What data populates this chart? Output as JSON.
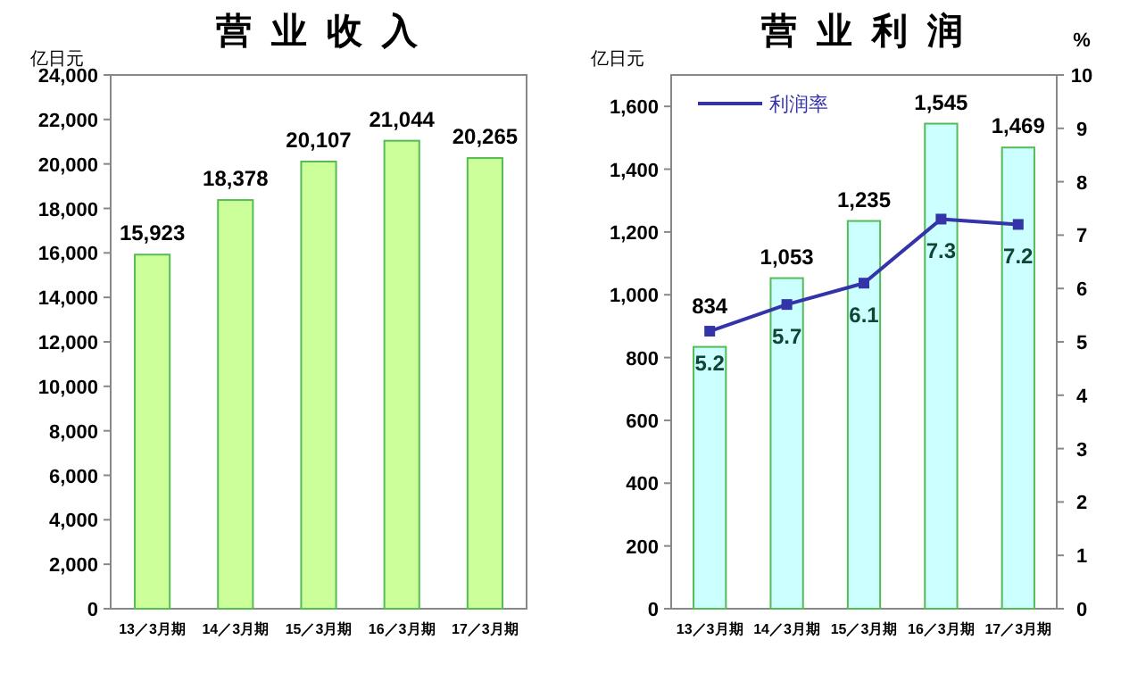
{
  "chart_data": [
    {
      "type": "bar",
      "title": "营 业 收 入",
      "ylabel": "亿日元",
      "categories": [
        "13／3月期",
        "14／3月期",
        "15／3月期",
        "16／3月期",
        "17／3月期"
      ],
      "series": [
        {
          "color": "#ccff99",
          "values": [
            15923,
            18378,
            20107,
            21044,
            20265
          ],
          "value_labels": [
            "15,923",
            "18,378",
            "20,107",
            "21,044",
            "20,265"
          ]
        }
      ],
      "ylim": [
        0,
        24000
      ],
      "yticks": [
        {
          "value": 0,
          "label": "0"
        },
        {
          "value": 2000,
          "label": "2,000"
        },
        {
          "value": 4000,
          "label": "4,000"
        },
        {
          "value": 6000,
          "label": "6,000"
        },
        {
          "value": 8000,
          "label": "8,000"
        },
        {
          "value": 10000,
          "label": "10,000"
        },
        {
          "value": 12000,
          "label": "12,000"
        },
        {
          "value": 14000,
          "label": "14,000"
        },
        {
          "value": 16000,
          "label": "16,000"
        },
        {
          "value": 18000,
          "label": "18,000"
        },
        {
          "value": 20000,
          "label": "20,000"
        },
        {
          "value": 22000,
          "label": "22,000"
        },
        {
          "value": 24000,
          "label": "24,000"
        }
      ],
      "grid": false,
      "legend": false
    },
    {
      "type": "bar",
      "title": "营 业 利 润",
      "ylabel": "亿日元",
      "y2label": "%",
      "categories": [
        "13／3月期",
        "14／3月期",
        "15／3月期",
        "16／3月期",
        "17／3月期"
      ],
      "series": [
        {
          "color": "#ccffff",
          "values": [
            834,
            1053,
            1235,
            1545,
            1469
          ],
          "value_labels": [
            "834",
            "1,053",
            "1,235",
            "1,545",
            "1,469"
          ]
        },
        {
          "type": "line",
          "name": "利润率",
          "axis": "y2",
          "color": "#3333aa",
          "values": [
            5.2,
            5.7,
            6.1,
            7.3,
            7.2
          ],
          "marker": "square"
        }
      ],
      "ylim": [
        0,
        1700
      ],
      "yticks": [
        {
          "value": 0,
          "label": "0"
        },
        {
          "value": 200,
          "label": "200"
        },
        {
          "value": 400,
          "label": "400"
        },
        {
          "value": 600,
          "label": "600"
        },
        {
          "value": 800,
          "label": "800"
        },
        {
          "value": 1000,
          "label": "1,000"
        },
        {
          "value": 1200,
          "label": "1,200"
        },
        {
          "value": 1400,
          "label": "1,400"
        },
        {
          "value": 1600,
          "label": "1,600"
        }
      ],
      "y2lim": [
        0,
        10
      ],
      "y2ticks": [
        0,
        1,
        2,
        3,
        4,
        5,
        6,
        7,
        8,
        9,
        10
      ],
      "data_labels": true,
      "grid": false,
      "legend": "top left"
    }
  ]
}
